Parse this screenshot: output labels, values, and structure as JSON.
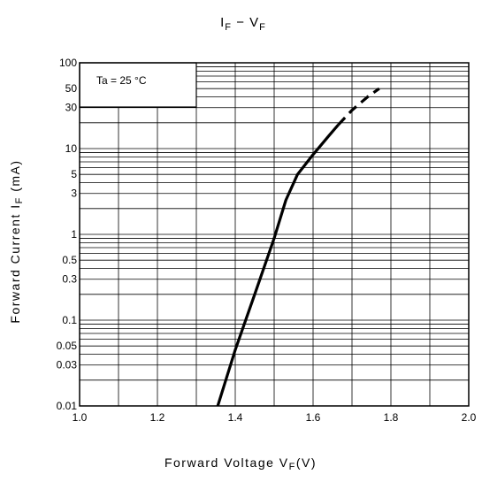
{
  "chart_data": {
    "type": "line",
    "title": {
      "main": "I",
      "main_sub": "F",
      "sep": " − V",
      "sep_sub": "F"
    },
    "xlabel": {
      "text": "Forward Voltage V",
      "sub": "F",
      "after": "(V)"
    },
    "ylabel": {
      "text": "Forward Current I",
      "sub": "F",
      "after": " (mA)"
    },
    "xlim": [
      1.0,
      2.0
    ],
    "ylim": [
      0.01,
      100
    ],
    "yscale": "log",
    "grid": true,
    "x_ticks": [
      1.0,
      1.2,
      1.4,
      1.6,
      1.8,
      2.0
    ],
    "x_tick_labels": [
      "1.0",
      "1.2",
      "1.4",
      "1.6",
      "1.8",
      "2.0"
    ],
    "y_ticks": [
      0.01,
      0.03,
      0.05,
      0.1,
      0.3,
      0.5,
      1,
      3,
      5,
      10,
      30,
      50,
      100
    ],
    "y_tick_labels": [
      "0.01",
      "0.03",
      "0.05",
      "0.1",
      "0.3",
      "0.5",
      "1",
      "3",
      "5",
      "10",
      "30",
      "50",
      "100"
    ],
    "annotation": "Ta = 25 °C",
    "series": [
      {
        "style": "solid",
        "x": [
          1.355,
          1.4,
          1.45,
          1.5,
          1.53,
          1.56,
          1.6,
          1.64,
          1.665
        ],
        "y": [
          0.01,
          0.045,
          0.2,
          0.9,
          2.5,
          5.0,
          8.5,
          14,
          19
        ]
      },
      {
        "style": "dashed",
        "x": [
          1.665,
          1.7,
          1.74,
          1.77
        ],
        "y": [
          19,
          28,
          40,
          50
        ]
      }
    ]
  }
}
